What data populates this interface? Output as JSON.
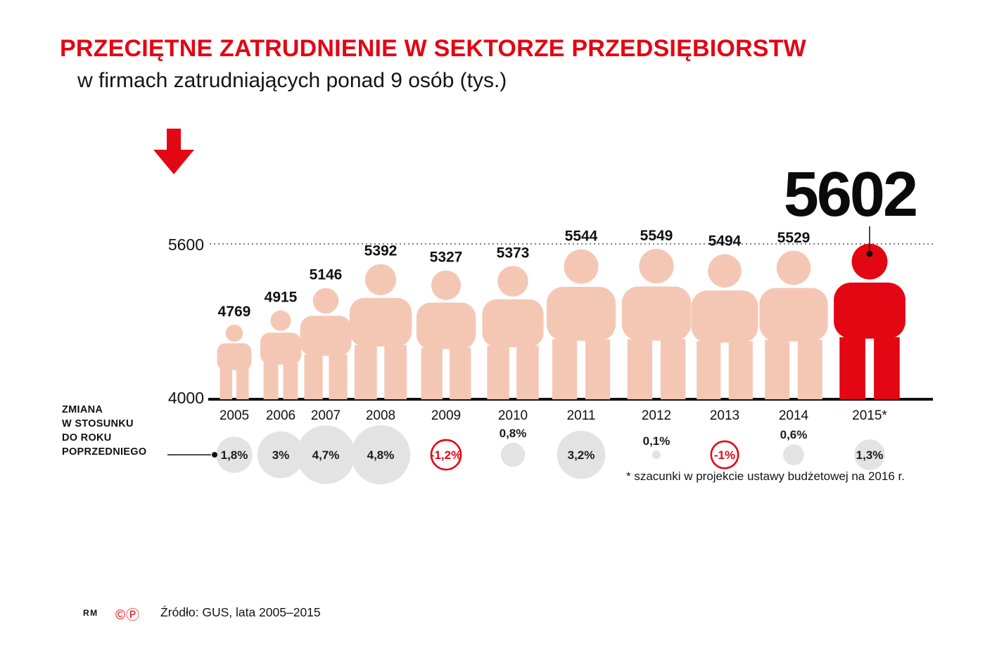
{
  "header": {
    "title": "PRZECIĘTNE ZATRUDNIENIE W SEKTORZE PRZEDSIĘBIORSTW",
    "subtitle": "w firmach zatrudniających ponad 9 osób (tys.)"
  },
  "chart_data": {
    "type": "bar",
    "title": "PRZECIĘTNE ZATRUDNIENIE W SEKTORZE PRZEDSIĘBIORSTW",
    "subtitle": "w firmach zatrudniających ponad 9 osób (tys.)",
    "unit": "tys.",
    "categories": [
      "2005",
      "2006",
      "2007",
      "2008",
      "2009",
      "2010",
      "2011",
      "2012",
      "2013",
      "2014",
      "2015*"
    ],
    "values": [
      4769,
      4915,
      5146,
      5392,
      5327,
      5373,
      5544,
      5549,
      5494,
      5529,
      5602
    ],
    "value_labels": [
      "4769",
      "4915",
      "5146",
      "5392",
      "5327",
      "5373",
      "5544",
      "5549",
      "5494",
      "5529",
      "5602"
    ],
    "changes_pct": [
      1.8,
      3,
      4.7,
      4.8,
      -1.2,
      0.8,
      3.2,
      0.1,
      -1,
      0.6,
      1.3
    ],
    "change_labels": [
      "1,8%",
      "3%",
      "4,7%",
      "4,8%",
      "-1,2%",
      "0,8%",
      "3,2%",
      "0,1%",
      "-1%",
      "0,6%",
      "1,3%"
    ],
    "highlight_index": 10,
    "highlight_value": "5602",
    "ylim": [
      4000,
      5600
    ],
    "y_axis_ticks": [
      "5600",
      "4000"
    ],
    "grid": "single dotted line at 5600",
    "legend": "none",
    "change_axis_label_lines": [
      "ZMIANA",
      "W STOSUNKU",
      "DO ROKU",
      "POPRZEDNIEGO"
    ],
    "footnote": "* szacunki w projekcie ustawy budżetowej na 2016 r.",
    "colors": {
      "accent_red": "#e30613",
      "figure_pink": "#f4c7b5",
      "bubble_gray": "#e3e3e3",
      "text": "#111111"
    }
  },
  "footer": {
    "logo": "RM",
    "copyright_icon": "©",
    "phonogram_icon": "Ⓟ",
    "source": "Źródło: GUS, lata 2005–2015"
  }
}
